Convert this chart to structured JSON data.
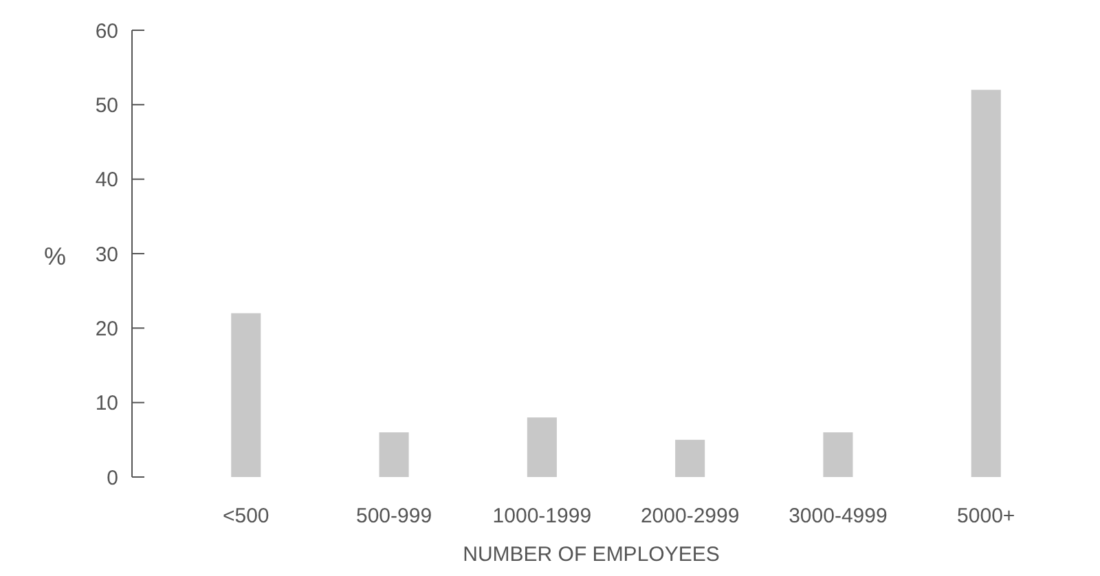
{
  "chart_data": {
    "type": "bar",
    "xlabel": "NUMBER OF EMPLOYEES",
    "ylabel": "%",
    "categories": [
      "<500",
      "500-999",
      "1000-1999",
      "2000-2999",
      "3000-4999",
      "5000+"
    ],
    "values": [
      22,
      6,
      8,
      5,
      6,
      52
    ],
    "color": "#c8c8c8",
    "ylim": [
      0,
      60
    ],
    "yticks": [
      0,
      10,
      20,
      30,
      40,
      50,
      60
    ],
    "grid": false
  }
}
